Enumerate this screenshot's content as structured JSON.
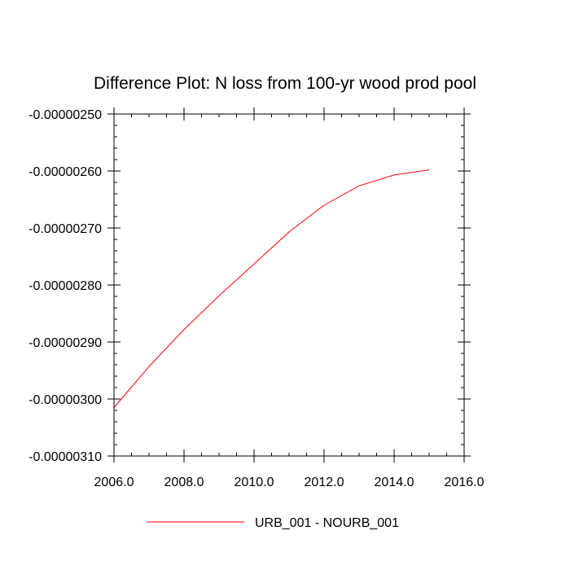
{
  "chart_data": {
    "type": "line",
    "title": "Difference Plot: N loss from 100-yr wood prod pool",
    "xlabel": "",
    "ylabel": "",
    "xlim": [
      2006.0,
      2016.0
    ],
    "ylim": [
      -3.1e-06,
      -2.5e-06
    ],
    "x_ticks": [
      2006.0,
      2008.0,
      2010.0,
      2012.0,
      2014.0,
      2016.0
    ],
    "x_tick_labels": [
      "2006.0",
      "2008.0",
      "2010.0",
      "2012.0",
      "2014.0",
      "2016.0"
    ],
    "y_ticks": [
      -2.5e-06,
      -2.6e-06,
      -2.7e-06,
      -2.8e-06,
      -2.9e-06,
      -3e-06,
      -3.1e-06
    ],
    "y_tick_labels": [
      "-0.00000250",
      "-0.00000260",
      "-0.00000270",
      "-0.00000280",
      "-0.00000290",
      "-0.00000300",
      "-0.00000310"
    ],
    "grid": false,
    "legend_position": "bottom",
    "series": [
      {
        "name": "URB_001 - NOURB_001",
        "color": "#ff0000",
        "x": [
          2006,
          2007,
          2008,
          2009,
          2010,
          2011,
          2012,
          2013,
          2014,
          2015
        ],
        "y": [
          -3.015e-06,
          -2.943e-06,
          -2.878e-06,
          -2.819e-06,
          -2.763e-06,
          -2.707e-06,
          -2.66e-06,
          -2.626e-06,
          -2.607e-06,
          -2.598e-06
        ]
      }
    ]
  }
}
